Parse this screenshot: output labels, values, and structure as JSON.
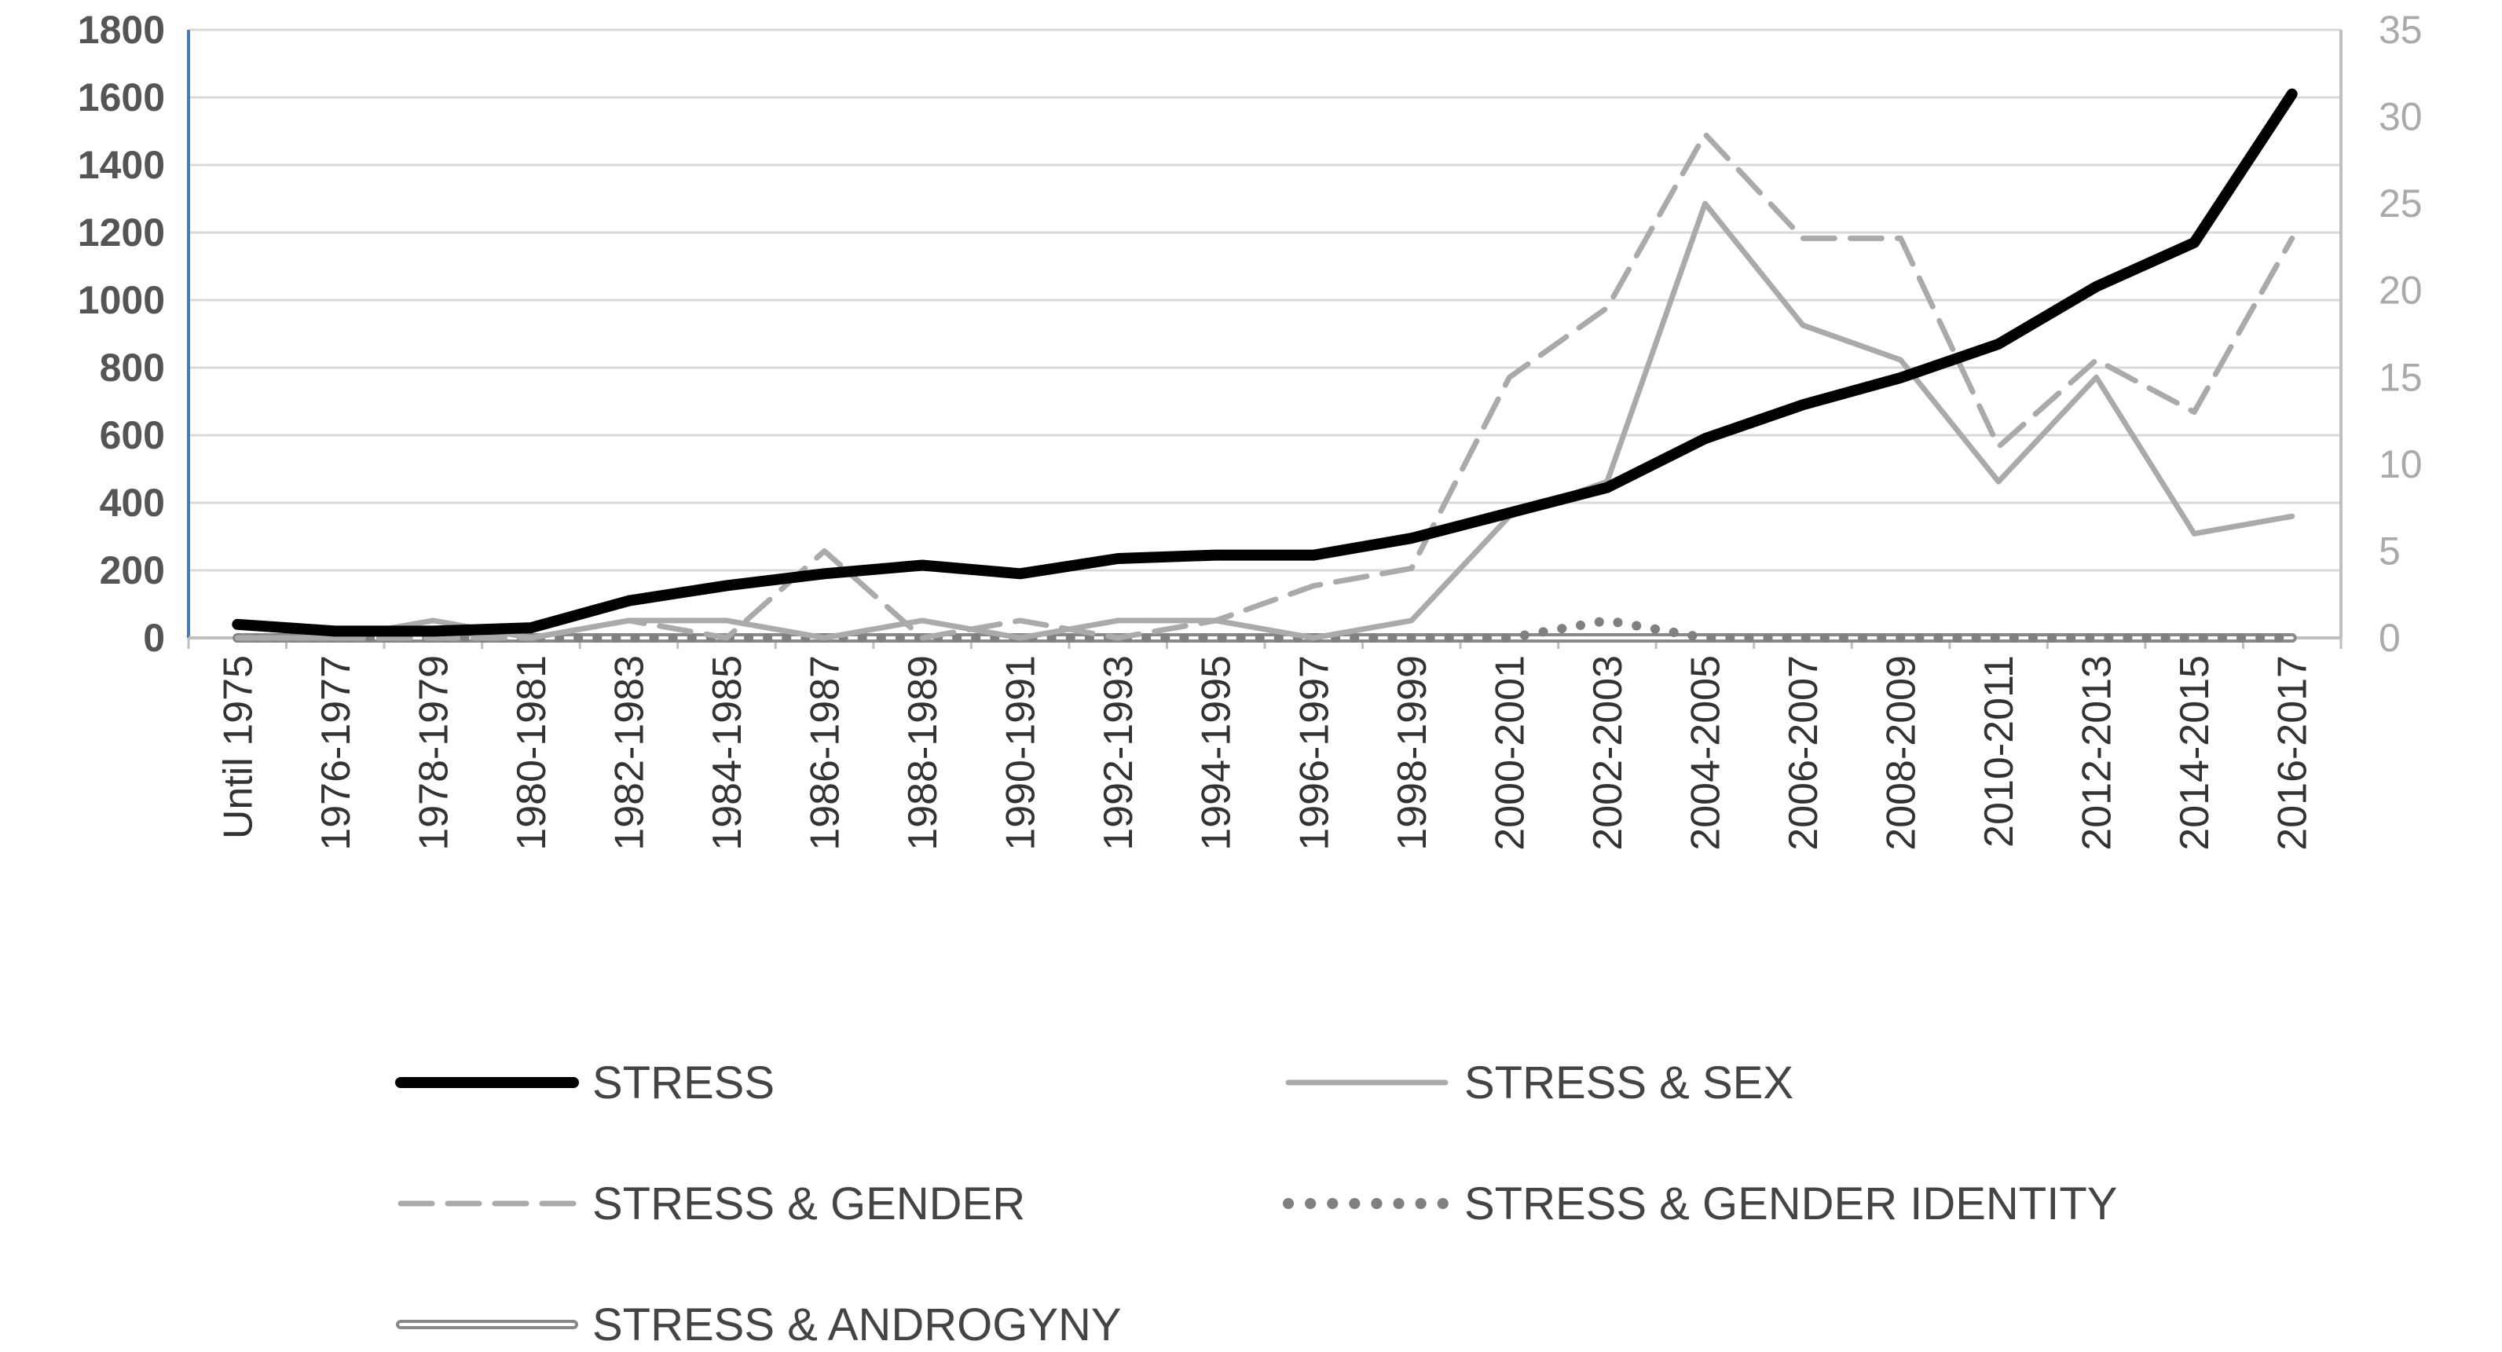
{
  "chart_data": {
    "type": "line",
    "title": "",
    "xlabel": "",
    "ylabel": "",
    "categories": [
      "Until 1975",
      "1976-1977",
      "1978-1979",
      "1980-1981",
      "1982-1983",
      "1984-1985",
      "1986-1987",
      "1988-1989",
      "1990-1991",
      "1992-1993",
      "1994-1995",
      "1996-1997",
      "1998-1999",
      "2000-2001",
      "2002-2003",
      "2004-2005",
      "2006-2007",
      "2008-2009",
      "2010-2011",
      "2012-2013",
      "2014-2015",
      "2016-2017"
    ],
    "y_left": {
      "min": 0,
      "max": 1800,
      "ticks": [
        "0",
        "200",
        "400",
        "600",
        "800",
        "1000",
        "1200",
        "1400",
        "1600",
        "1800"
      ]
    },
    "y_right": {
      "min": 0,
      "max": 35,
      "ticks": [
        "0",
        "5",
        "10",
        "15",
        "20",
        "25",
        "30",
        "35"
      ]
    },
    "grid": true,
    "legend_position": "bottom",
    "series": [
      {
        "name": "STRESS",
        "axis": "left",
        "style": "thick-solid",
        "color": "#000000",
        "values": [
          40,
          20,
          20,
          30,
          110,
          155,
          190,
          215,
          190,
          235,
          245,
          245,
          295,
          370,
          445,
          590,
          690,
          770,
          870,
          1040,
          1170,
          1610
        ]
      },
      {
        "name": "STRESS & SEX",
        "axis": "right",
        "style": "solid",
        "color": "#aaaaaa",
        "values": [
          0,
          0,
          1,
          0,
          1,
          1,
          0,
          1,
          0,
          1,
          1,
          0,
          1,
          7,
          9,
          25,
          18,
          16,
          9,
          15,
          6,
          7
        ]
      },
      {
        "name": "STRESS & GENDER",
        "axis": "right",
        "style": "dashed",
        "color": "#aaaaaa",
        "values": [
          0,
          0,
          0,
          0,
          1,
          0,
          5,
          0,
          1,
          0,
          1,
          3,
          4,
          15,
          19,
          29,
          23,
          23,
          11,
          16,
          13,
          23
        ]
      },
      {
        "name": "STRESS & GENDER IDENTITY",
        "axis": "right",
        "style": "dotted",
        "color": "#808080",
        "values": [
          0,
          0,
          0,
          0,
          0,
          0,
          0,
          0,
          0,
          0,
          0,
          0,
          0,
          0,
          1,
          0,
          0,
          0,
          0,
          0,
          0,
          0
        ]
      },
      {
        "name": "STRESS & ANDROGYNY",
        "axis": "right",
        "style": "double",
        "color": "#888888",
        "values": [
          0,
          0,
          0,
          0,
          0,
          0,
          0,
          0,
          0,
          0,
          0,
          0,
          0,
          0,
          0,
          0,
          0,
          0,
          0,
          0,
          0,
          0
        ]
      }
    ]
  }
}
